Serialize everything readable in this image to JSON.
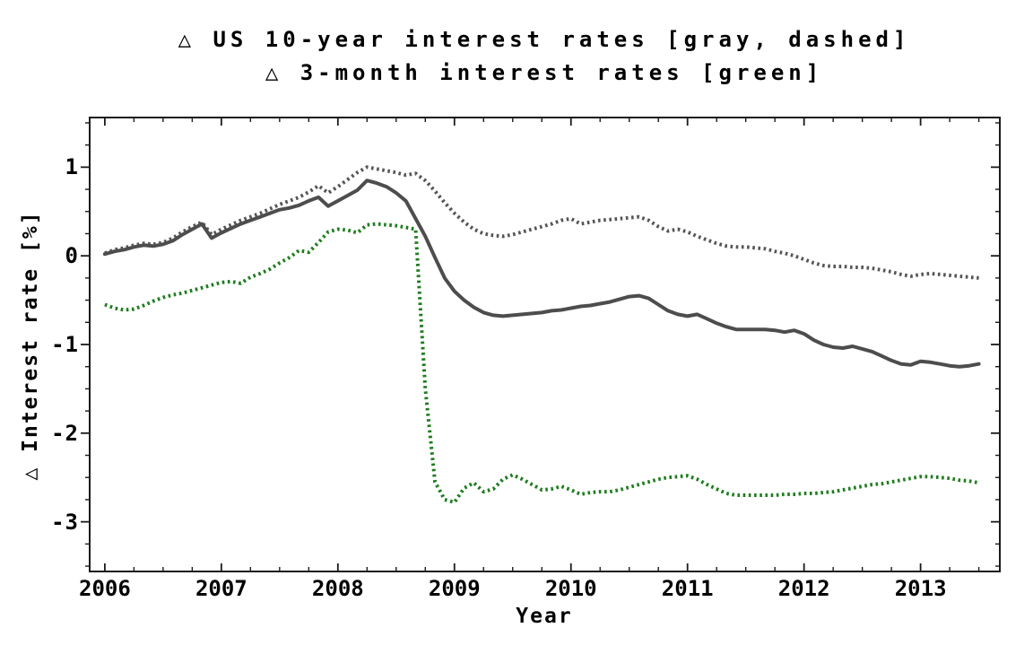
{
  "chart_data": {
    "type": "line",
    "title_line1": "△ US 10-year interest rates [gray, dashed]",
    "title_line2": "△ 3-month interest rates [green]",
    "xlabel": "Year",
    "ylabel": "△ Interest rate [%]",
    "xlim": [
      2005.87,
      2013.68
    ],
    "ylim": [
      -3.56,
      1.56
    ],
    "grid": false,
    "frame": true,
    "legend": "in-title",
    "x_tick_values": [
      2006,
      2007,
      2008,
      2009,
      2010,
      2011,
      2012,
      2013
    ],
    "x_tick_labels": [
      "2006",
      "2007",
      "2008",
      "2009",
      "2010",
      "2011",
      "2012",
      "2013"
    ],
    "y_tick_values": [
      1,
      0,
      -1,
      -2,
      -3
    ],
    "y_tick_labels": [
      "1",
      "0",
      "-1",
      "-2",
      "-3"
    ],
    "minor_tick_step_x": 0.25,
    "minor_tick_step_y": 0.25,
    "x_start": 2006.0,
    "x_step": 0.0833333333,
    "x_unit": "year (monthly points)",
    "frame_color": "#1a1a1a",
    "series": [
      {
        "id": "us-10-year",
        "name": "US 10-year interest rates",
        "style": "dotted",
        "color": "#555555",
        "values": [
          0.03,
          0.07,
          0.09,
          0.12,
          0.14,
          0.13,
          0.15,
          0.2,
          0.27,
          0.33,
          0.38,
          0.24,
          0.3,
          0.35,
          0.4,
          0.44,
          0.48,
          0.53,
          0.58,
          0.62,
          0.66,
          0.72,
          0.79,
          0.71,
          0.78,
          0.86,
          0.94,
          1.0,
          0.98,
          0.96,
          0.94,
          0.91,
          0.93,
          0.85,
          0.73,
          0.6,
          0.48,
          0.38,
          0.3,
          0.25,
          0.23,
          0.22,
          0.24,
          0.27,
          0.3,
          0.33,
          0.36,
          0.4,
          0.42,
          0.36,
          0.38,
          0.4,
          0.41,
          0.42,
          0.43,
          0.44,
          0.4,
          0.33,
          0.28,
          0.3,
          0.27,
          0.22,
          0.18,
          0.14,
          0.11,
          0.1,
          0.1,
          0.09,
          0.08,
          0.05,
          0.03,
          0.0,
          -0.04,
          -0.08,
          -0.11,
          -0.12,
          -0.12,
          -0.13,
          -0.13,
          -0.14,
          -0.16,
          -0.18,
          -0.21,
          -0.23,
          -0.21,
          -0.2,
          -0.21,
          -0.22,
          -0.23,
          -0.24,
          -0.25
        ]
      },
      {
        "id": "three-month",
        "name": "3-month interest rates",
        "style": "dotted",
        "color": "#1e7d1e",
        "values": [
          -0.55,
          -0.59,
          -0.61,
          -0.6,
          -0.56,
          -0.51,
          -0.47,
          -0.44,
          -0.42,
          -0.39,
          -0.36,
          -0.33,
          -0.3,
          -0.29,
          -0.31,
          -0.24,
          -0.2,
          -0.15,
          -0.08,
          -0.02,
          0.06,
          0.04,
          0.15,
          0.27,
          0.3,
          0.29,
          0.26,
          0.35,
          0.36,
          0.35,
          0.34,
          0.32,
          0.3,
          -1.5,
          -2.55,
          -2.75,
          -2.78,
          -2.62,
          -2.56,
          -2.66,
          -2.63,
          -2.52,
          -2.47,
          -2.52,
          -2.58,
          -2.64,
          -2.63,
          -2.6,
          -2.64,
          -2.69,
          -2.67,
          -2.66,
          -2.66,
          -2.64,
          -2.61,
          -2.58,
          -2.55,
          -2.52,
          -2.5,
          -2.49,
          -2.48,
          -2.52,
          -2.58,
          -2.63,
          -2.68,
          -2.7,
          -2.7,
          -2.7,
          -2.7,
          -2.7,
          -2.69,
          -2.69,
          -2.68,
          -2.68,
          -2.67,
          -2.66,
          -2.64,
          -2.62,
          -2.6,
          -2.58,
          -2.57,
          -2.55,
          -2.53,
          -2.51,
          -2.49,
          -2.49,
          -2.5,
          -2.51,
          -2.53,
          -2.54,
          -2.56
        ]
      },
      {
        "id": "solid-unlabeled",
        "name": "unlabeled solid dark series (10-year rates)",
        "style": "solid",
        "color": "#4d4d4d",
        "values": [
          0.02,
          0.05,
          0.07,
          0.1,
          0.12,
          0.11,
          0.13,
          0.17,
          0.24,
          0.3,
          0.36,
          0.2,
          0.26,
          0.31,
          0.36,
          0.4,
          0.44,
          0.48,
          0.52,
          0.54,
          0.57,
          0.62,
          0.66,
          0.56,
          0.62,
          0.68,
          0.74,
          0.85,
          0.82,
          0.78,
          0.71,
          0.62,
          0.42,
          0.22,
          -0.02,
          -0.25,
          -0.4,
          -0.5,
          -0.58,
          -0.64,
          -0.67,
          -0.68,
          -0.67,
          -0.66,
          -0.65,
          -0.64,
          -0.62,
          -0.61,
          -0.59,
          -0.57,
          -0.56,
          -0.54,
          -0.52,
          -0.49,
          -0.46,
          -0.45,
          -0.48,
          -0.55,
          -0.62,
          -0.66,
          -0.68,
          -0.66,
          -0.71,
          -0.76,
          -0.8,
          -0.83,
          -0.83,
          -0.83,
          -0.83,
          -0.84,
          -0.86,
          -0.84,
          -0.88,
          -0.95,
          -1.0,
          -1.03,
          -1.04,
          -1.02,
          -1.05,
          -1.08,
          -1.13,
          -1.18,
          -1.22,
          -1.23,
          -1.19,
          -1.2,
          -1.22,
          -1.24,
          -1.25,
          -1.24,
          -1.22
        ]
      }
    ]
  }
}
